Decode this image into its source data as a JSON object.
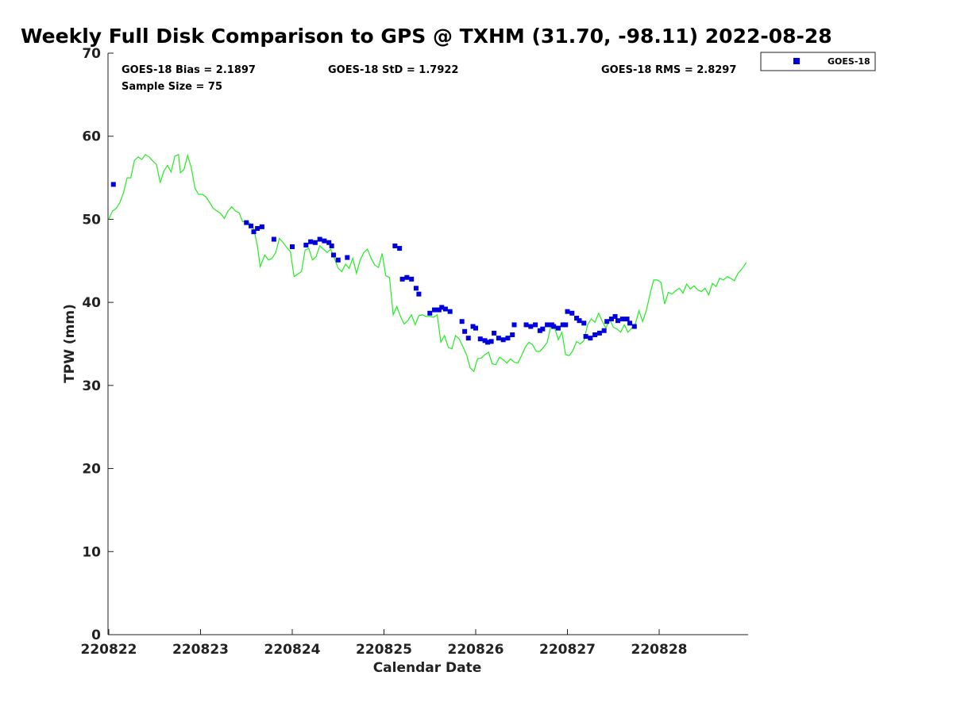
{
  "chart_data": {
    "type": "scatter",
    "title": "Weekly Full Disk Comparison to GPS @ TXHM (31.70, -98.11) 2022-08-28",
    "xlabel": "Calendar Date",
    "ylabel": "TPW (mm)",
    "x_tick_labels": [
      "220822",
      "220823",
      "220824",
      "220825",
      "220826",
      "220827",
      "220828"
    ],
    "x_range_days": [
      0,
      6.95
    ],
    "ylim": [
      0,
      70
    ],
    "y_ticks": [
      0,
      10,
      20,
      30,
      40,
      50,
      60,
      70
    ],
    "grid": false,
    "legend_position": "top-right-outside",
    "stats": {
      "bias": "GOES-18 Bias = 2.1897",
      "std": "GOES-18 StD = 1.7922",
      "rms": "GOES-18 RMS = 2.8297",
      "sample": "Sample Size = 75"
    },
    "colors": {
      "goes": "#0000dd",
      "gps": "#22ee22",
      "axis": "#222222"
    },
    "series": [
      {
        "name": "GOES-18",
        "marker": "square",
        "points": [
          [
            0.05,
            54.2
          ],
          [
            1.5,
            49.6
          ],
          [
            1.55,
            49.2
          ],
          [
            1.58,
            48.5
          ],
          [
            1.62,
            48.9
          ],
          [
            1.67,
            49.1
          ],
          [
            1.8,
            47.6
          ],
          [
            2.0,
            46.7
          ],
          [
            2.15,
            46.9
          ],
          [
            2.2,
            47.3
          ],
          [
            2.25,
            47.2
          ],
          [
            2.3,
            47.6
          ],
          [
            2.35,
            47.4
          ],
          [
            2.4,
            47.2
          ],
          [
            2.43,
            46.8
          ],
          [
            2.45,
            45.7
          ],
          [
            2.5,
            45.1
          ],
          [
            2.6,
            45.4
          ],
          [
            3.12,
            46.8
          ],
          [
            3.17,
            46.5
          ],
          [
            3.2,
            42.8
          ],
          [
            3.25,
            43.0
          ],
          [
            3.3,
            42.8
          ],
          [
            3.35,
            41.7
          ],
          [
            3.38,
            41.0
          ],
          [
            3.5,
            38.7
          ],
          [
            3.55,
            39.1
          ],
          [
            3.6,
            39.1
          ],
          [
            3.63,
            39.4
          ],
          [
            3.67,
            39.2
          ],
          [
            3.72,
            38.9
          ],
          [
            3.85,
            37.7
          ],
          [
            3.88,
            36.5
          ],
          [
            3.92,
            35.7
          ],
          [
            3.97,
            37.1
          ],
          [
            4.0,
            36.9
          ],
          [
            4.05,
            35.6
          ],
          [
            4.1,
            35.4
          ],
          [
            4.13,
            35.2
          ],
          [
            4.17,
            35.3
          ],
          [
            4.2,
            36.3
          ],
          [
            4.25,
            35.7
          ],
          [
            4.3,
            35.5
          ],
          [
            4.35,
            35.7
          ],
          [
            4.4,
            36.1
          ],
          [
            4.42,
            37.3
          ],
          [
            4.55,
            37.3
          ],
          [
            4.6,
            37.1
          ],
          [
            4.65,
            37.3
          ],
          [
            4.7,
            36.6
          ],
          [
            4.73,
            36.8
          ],
          [
            4.78,
            37.3
          ],
          [
            4.83,
            37.3
          ],
          [
            4.85,
            37.1
          ],
          [
            4.9,
            36.9
          ],
          [
            4.95,
            37.3
          ],
          [
            4.98,
            37.3
          ],
          [
            5.0,
            38.9
          ],
          [
            5.05,
            38.7
          ],
          [
            5.1,
            38.1
          ],
          [
            5.13,
            37.8
          ],
          [
            5.18,
            37.5
          ],
          [
            5.2,
            35.9
          ],
          [
            5.25,
            35.7
          ],
          [
            5.3,
            36.1
          ],
          [
            5.35,
            36.3
          ],
          [
            5.4,
            36.6
          ],
          [
            5.43,
            37.7
          ],
          [
            5.48,
            38.0
          ],
          [
            5.52,
            38.3
          ],
          [
            5.55,
            37.8
          ],
          [
            5.6,
            38.0
          ],
          [
            5.65,
            38.0
          ],
          [
            5.68,
            37.5
          ],
          [
            5.73,
            37.1
          ]
        ]
      },
      {
        "name": "GPS",
        "points": [
          [
            0,
            50.0
          ],
          [
            0.04,
            51.0
          ],
          [
            0.08,
            51.3
          ],
          [
            0.12,
            52.0
          ],
          [
            0.16,
            53.2
          ],
          [
            0.2,
            55.0
          ],
          [
            0.24,
            55.0
          ],
          [
            0.28,
            57.1
          ],
          [
            0.32,
            57.5
          ],
          [
            0.36,
            57.2
          ],
          [
            0.4,
            57.8
          ],
          [
            0.44,
            57.5
          ],
          [
            0.48,
            57.0
          ],
          [
            0.52,
            56.6
          ],
          [
            0.56,
            54.4
          ],
          [
            0.6,
            55.8
          ],
          [
            0.64,
            56.5
          ],
          [
            0.68,
            55.7
          ],
          [
            0.72,
            57.6
          ],
          [
            0.76,
            57.8
          ],
          [
            0.78,
            55.6
          ],
          [
            0.82,
            56.0
          ],
          [
            0.86,
            57.7
          ],
          [
            0.9,
            56.2
          ],
          [
            0.94,
            53.7
          ],
          [
            0.98,
            53.0
          ],
          [
            1.02,
            53.0
          ],
          [
            1.06,
            52.7
          ],
          [
            1.1,
            52.0
          ],
          [
            1.14,
            51.3
          ],
          [
            1.18,
            51.0
          ],
          [
            1.22,
            50.7
          ],
          [
            1.26,
            50.1
          ],
          [
            1.3,
            51.0
          ],
          [
            1.34,
            51.5
          ],
          [
            1.38,
            51.0
          ],
          [
            1.42,
            50.8
          ],
          [
            1.46,
            49.7
          ],
          [
            1.5,
            49.8
          ],
          [
            1.54,
            49.5
          ],
          [
            1.58,
            48.9
          ],
          [
            1.62,
            46.8
          ],
          [
            1.65,
            44.3
          ],
          [
            1.7,
            45.7
          ],
          [
            1.74,
            45.1
          ],
          [
            1.78,
            45.3
          ],
          [
            1.82,
            46.0
          ],
          [
            1.86,
            47.7
          ],
          [
            1.9,
            47.2
          ],
          [
            1.94,
            46.6
          ],
          [
            1.98,
            46.1
          ],
          [
            2.02,
            43.1
          ],
          [
            2.06,
            43.4
          ],
          [
            2.1,
            43.7
          ],
          [
            2.14,
            46.3
          ],
          [
            2.18,
            46.5
          ],
          [
            2.22,
            45.1
          ],
          [
            2.26,
            45.5
          ],
          [
            2.3,
            46.8
          ],
          [
            2.34,
            46.4
          ],
          [
            2.38,
            46.0
          ],
          [
            2.42,
            46.4
          ],
          [
            2.46,
            45.3
          ],
          [
            2.5,
            44.1
          ],
          [
            2.54,
            43.7
          ],
          [
            2.58,
            44.6
          ],
          [
            2.62,
            44.1
          ],
          [
            2.66,
            45.3
          ],
          [
            2.7,
            43.5
          ],
          [
            2.74,
            45.1
          ],
          [
            2.78,
            46.0
          ],
          [
            2.82,
            46.4
          ],
          [
            2.86,
            45.3
          ],
          [
            2.9,
            44.5
          ],
          [
            2.94,
            44.2
          ],
          [
            2.98,
            45.9
          ],
          [
            3.02,
            43.2
          ],
          [
            3.06,
            43.0
          ],
          [
            3.1,
            38.5
          ],
          [
            3.14,
            39.5
          ],
          [
            3.18,
            38.3
          ],
          [
            3.22,
            37.4
          ],
          [
            3.26,
            37.8
          ],
          [
            3.3,
            38.5
          ],
          [
            3.34,
            37.3
          ],
          [
            3.38,
            38.4
          ],
          [
            3.42,
            38.5
          ],
          [
            3.46,
            38.3
          ],
          [
            3.5,
            38.3
          ],
          [
            3.54,
            38.2
          ],
          [
            3.58,
            38.5
          ],
          [
            3.62,
            35.2
          ],
          [
            3.66,
            36.0
          ],
          [
            3.7,
            34.6
          ],
          [
            3.74,
            34.4
          ],
          [
            3.78,
            36.0
          ],
          [
            3.82,
            35.6
          ],
          [
            3.86,
            34.7
          ],
          [
            3.9,
            33.7
          ],
          [
            3.94,
            32.1
          ],
          [
            3.98,
            31.7
          ],
          [
            4.02,
            33.2
          ],
          [
            4.06,
            33.3
          ],
          [
            4.1,
            33.7
          ],
          [
            4.14,
            34.0
          ],
          [
            4.18,
            32.6
          ],
          [
            4.22,
            32.5
          ],
          [
            4.26,
            33.4
          ],
          [
            4.3,
            33.1
          ],
          [
            4.34,
            32.7
          ],
          [
            4.38,
            33.2
          ],
          [
            4.42,
            32.8
          ],
          [
            4.46,
            32.7
          ],
          [
            4.5,
            33.6
          ],
          [
            4.54,
            34.6
          ],
          [
            4.58,
            35.2
          ],
          [
            4.62,
            34.9
          ],
          [
            4.66,
            34.1
          ],
          [
            4.7,
            34.1
          ],
          [
            4.74,
            34.6
          ],
          [
            4.78,
            35.2
          ],
          [
            4.82,
            37.2
          ],
          [
            4.86,
            37.0
          ],
          [
            4.9,
            35.5
          ],
          [
            4.94,
            36.4
          ],
          [
            4.98,
            33.7
          ],
          [
            5.02,
            33.6
          ],
          [
            5.06,
            34.2
          ],
          [
            5.1,
            35.3
          ],
          [
            5.14,
            35.0
          ],
          [
            5.18,
            35.4
          ],
          [
            5.22,
            37.3
          ],
          [
            5.26,
            38.0
          ],
          [
            5.3,
            37.6
          ],
          [
            5.34,
            38.7
          ],
          [
            5.38,
            37.7
          ],
          [
            5.42,
            36.9
          ],
          [
            5.46,
            38.0
          ],
          [
            5.5,
            37.0
          ],
          [
            5.54,
            36.8
          ],
          [
            5.58,
            36.4
          ],
          [
            5.62,
            37.3
          ],
          [
            5.66,
            36.4
          ],
          [
            5.7,
            36.9
          ],
          [
            5.74,
            37.4
          ],
          [
            5.78,
            39.0
          ],
          [
            5.82,
            37.7
          ],
          [
            5.86,
            39.0
          ],
          [
            5.9,
            41.0
          ],
          [
            5.94,
            42.7
          ],
          [
            5.98,
            42.7
          ],
          [
            6.02,
            42.4
          ],
          [
            6.06,
            39.8
          ],
          [
            6.1,
            41.2
          ],
          [
            6.14,
            41.0
          ],
          [
            6.18,
            41.4
          ],
          [
            6.22,
            41.7
          ],
          [
            6.26,
            41.1
          ],
          [
            6.3,
            42.2
          ],
          [
            6.34,
            41.6
          ],
          [
            6.38,
            42.0
          ],
          [
            6.42,
            41.5
          ],
          [
            6.46,
            41.3
          ],
          [
            6.5,
            41.7
          ],
          [
            6.54,
            40.9
          ],
          [
            6.58,
            42.3
          ],
          [
            6.62,
            41.9
          ],
          [
            6.66,
            42.9
          ],
          [
            6.7,
            42.7
          ],
          [
            6.74,
            43.1
          ],
          [
            6.78,
            42.9
          ],
          [
            6.82,
            42.6
          ],
          [
            6.86,
            43.5
          ],
          [
            6.9,
            44.0
          ],
          [
            6.95,
            44.8
          ]
        ]
      }
    ]
  }
}
